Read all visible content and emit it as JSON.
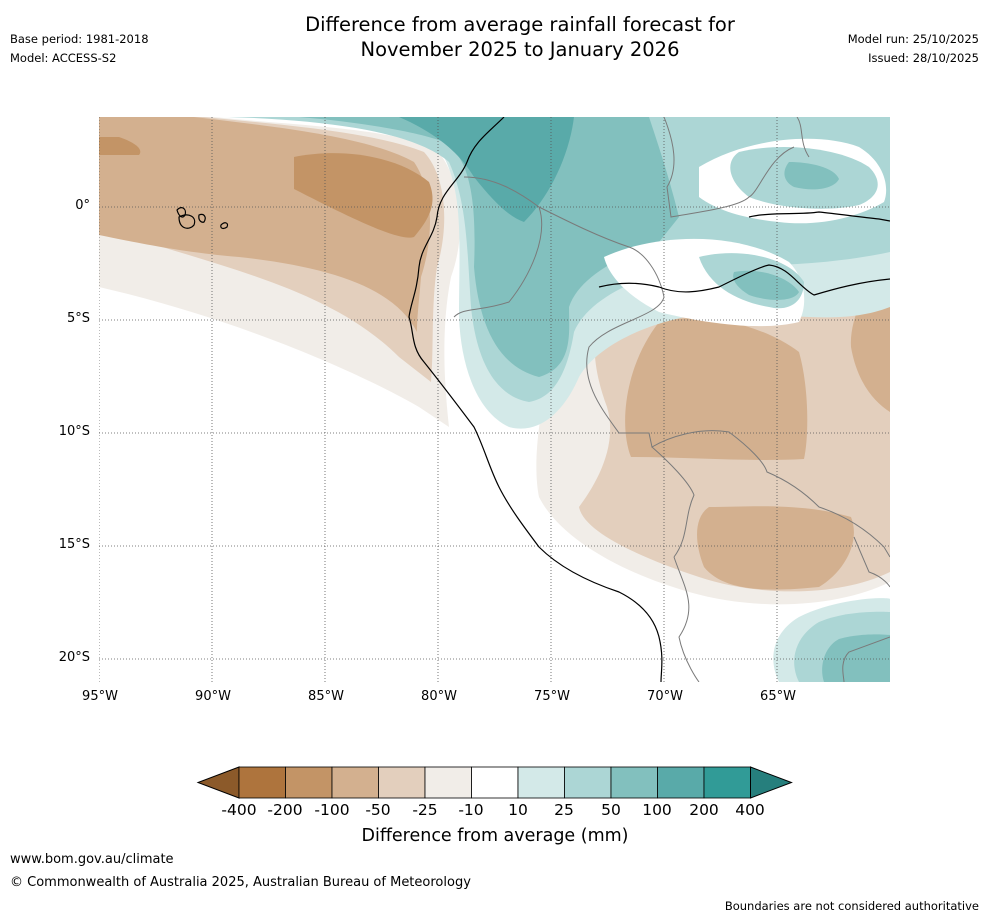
{
  "header": {
    "base_period": "Base period: 1981-2018",
    "model": "Model: ACCESS-S2",
    "title_line1": "Difference from average rainfall forecast for",
    "title_line2": "November 2025 to January 2026",
    "model_run": "Model run: 25/10/2025",
    "issued": "Issued: 28/10/2025"
  },
  "map": {
    "lat_labels": [
      "0°",
      "5°S",
      "10°S",
      "15°S",
      "20°S"
    ],
    "lon_labels": [
      "95°W",
      "90°W",
      "85°W",
      "80°W",
      "75°W",
      "70°W",
      "65°W"
    ]
  },
  "colorbar": {
    "title": "Difference from average (mm)",
    "tick_labels": [
      "-400",
      "-200",
      "-100",
      "-50",
      "-25",
      "-10",
      "10",
      "25",
      "50",
      "100",
      "200",
      "400"
    ],
    "colors": [
      "#8c5a2a",
      "#ae743d",
      "#c39466",
      "#d3b08f",
      "#e3cfbd",
      "#f1ede8",
      "#ffffff",
      "#d3e9e8",
      "#acd6d5",
      "#82c0be",
      "#59aaa9",
      "#319b97",
      "#267f7d"
    ]
  },
  "footer": {
    "url": "www.bom.gov.au/climate",
    "copyright": "© Commonwealth of Australia 2025, Australian Bureau of Meteorology",
    "disclaimer": "Boundaries are not considered authoritative"
  }
}
